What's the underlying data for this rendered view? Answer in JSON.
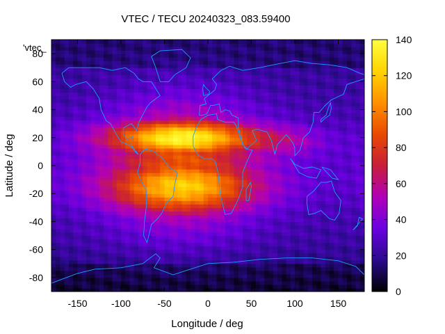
{
  "chart_data": {
    "type": "heatmap",
    "title": "VTEC / TECU 20240323_083.59400",
    "xlabel": "Longitude / deg",
    "ylabel": "Latitude / deg",
    "xlim": [
      -180,
      180
    ],
    "ylim": [
      -90,
      90
    ],
    "x_ticks": [
      -150,
      -100,
      -50,
      0,
      50,
      100,
      150
    ],
    "y_ticks": [
      -80,
      -60,
      -40,
      -20,
      0,
      20,
      40,
      60,
      80
    ],
    "colorbar": {
      "label": "",
      "range": [
        0,
        140
      ],
      "ticks": [
        0,
        20,
        40,
        60,
        80,
        100,
        120,
        140
      ],
      "colormap": "gnuplot-pm3d (black-purple-red-orange-yellow)"
    },
    "legend_entry": "'vtec_",
    "overlay": "continent coastlines",
    "approx_features": {
      "peak_value_tecu": 130,
      "peak_location_lon_lat": [
        -30,
        18
      ],
      "equatorial_anomaly_crests_lat": [
        20,
        -15
      ],
      "polar_values_tecu": 20
    }
  },
  "colors": {
    "coastline": "#1e9bff",
    "cmap_stops": [
      "#000000",
      "#2a0a8c",
      "#6a00e0",
      "#b000b8",
      "#c81e3a",
      "#e84a00",
      "#ff9000",
      "#ffd400",
      "#ffff40"
    ]
  }
}
